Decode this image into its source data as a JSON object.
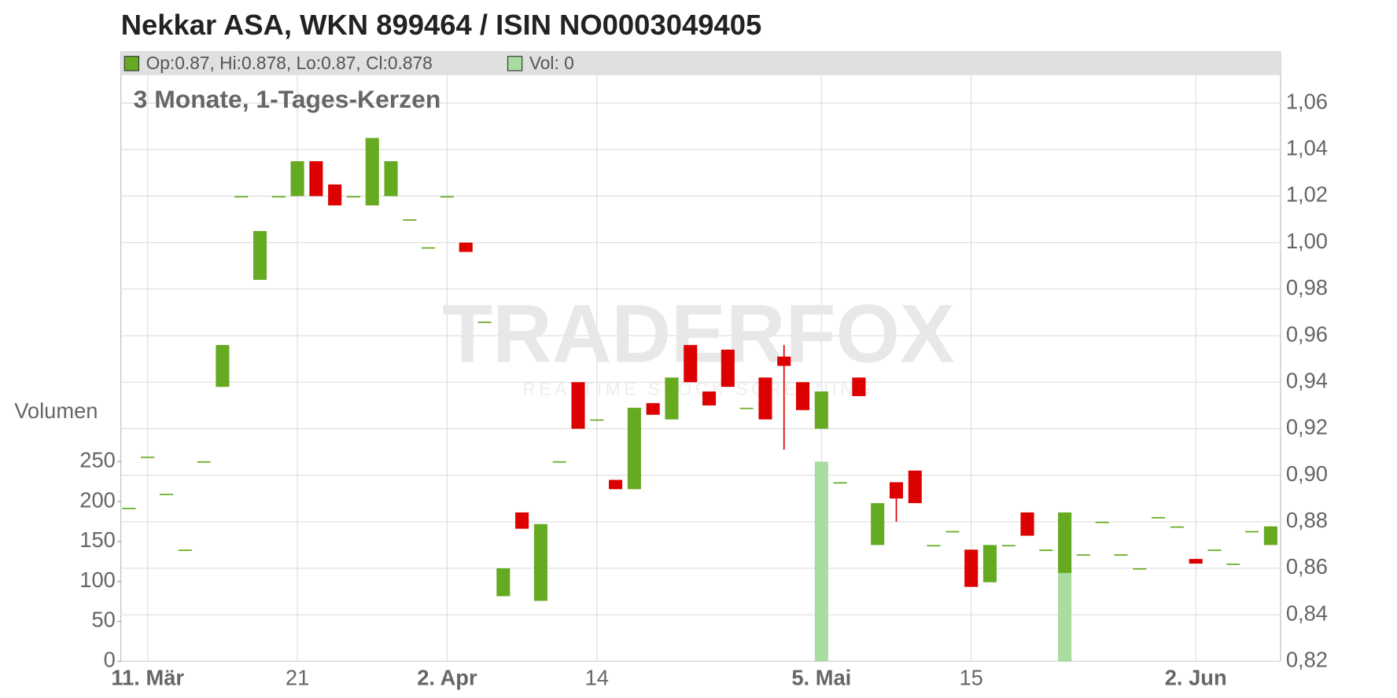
{
  "chart_data": {
    "type": "candlestick",
    "title": "Nekkar ASA, WKN 899464 / ISIN NO0003049405",
    "subtitle": "3 Monate, 1-Tages-Kerzen",
    "legend": {
      "ohlc_text": "Op:0.87, Hi:0.878, Lo:0.87, Cl:0.878",
      "volume_text": "Vol: 0"
    },
    "watermark": "TRADERFOX",
    "watermark_sub": "REALTIME STOCK SCREENING",
    "up_color": "#66aa22",
    "down_color": "#dd0000",
    "categories": [
      null,
      "11. Mär",
      null,
      null,
      null,
      null,
      null,
      null,
      null,
      "21",
      null,
      null,
      null,
      null,
      null,
      null,
      null,
      "2. Apr",
      null,
      null,
      null,
      null,
      null,
      null,
      null,
      "14",
      null,
      null,
      null,
      null,
      null,
      null,
      null,
      null,
      null,
      null,
      null,
      "5. Mai",
      null,
      null,
      null,
      null,
      null,
      null,
      null,
      "15",
      null,
      null,
      null,
      null,
      null,
      null,
      null,
      null,
      null,
      null,
      null,
      "2. Jun",
      null,
      null,
      null,
      null
    ],
    "open": [
      0.886,
      0.908,
      0.892,
      0.868,
      0.906,
      0.938,
      1.02,
      0.984,
      1.02,
      1.02,
      1.035,
      1.025,
      1.02,
      1.016,
      1.02,
      1.01,
      0.998,
      1.02,
      1.0,
      0.966,
      0.848,
      0.884,
      0.846,
      0.906,
      0.94,
      0.924,
      0.898,
      0.894,
      0.931,
      0.924,
      0.956,
      0.936,
      0.954,
      0.929,
      0.942,
      0.951,
      0.94,
      0.92,
      0.897,
      0.942,
      0.87,
      0.897,
      0.902,
      0.87,
      0.876,
      0.868,
      0.854,
      0.87,
      0.884,
      0.868,
      0.858,
      0.866,
      0.88,
      0.866,
      0.86,
      0.882,
      0.878,
      0.864,
      0.868,
      0.862,
      0.876,
      0.87
    ],
    "high": [
      0.886,
      0.908,
      0.892,
      0.868,
      0.906,
      0.956,
      1.02,
      1.005,
      1.02,
      1.035,
      1.035,
      1.025,
      1.02,
      1.045,
      1.035,
      1.01,
      0.998,
      1.02,
      1.0,
      0.966,
      0.86,
      0.884,
      0.879,
      0.906,
      0.94,
      0.924,
      0.898,
      0.929,
      0.931,
      0.942,
      0.956,
      0.936,
      0.954,
      0.929,
      0.942,
      0.956,
      0.94,
      0.936,
      0.897,
      0.942,
      0.888,
      0.897,
      0.902,
      0.87,
      0.876,
      0.868,
      0.87,
      0.87,
      0.884,
      0.868,
      0.884,
      0.866,
      0.88,
      0.866,
      0.86,
      0.882,
      0.878,
      0.864,
      0.868,
      0.862,
      0.876,
      0.878
    ],
    "low": [
      0.886,
      0.908,
      0.892,
      0.868,
      0.906,
      0.938,
      1.02,
      0.984,
      1.02,
      1.02,
      1.02,
      1.016,
      1.02,
      1.016,
      1.02,
      1.01,
      0.998,
      1.02,
      0.996,
      0.966,
      0.848,
      0.877,
      0.846,
      0.906,
      0.92,
      0.924,
      0.894,
      0.894,
      0.926,
      0.924,
      0.94,
      0.93,
      0.938,
      0.929,
      0.924,
      0.911,
      0.928,
      0.92,
      0.897,
      0.934,
      0.87,
      0.88,
      0.888,
      0.87,
      0.876,
      0.852,
      0.854,
      0.87,
      0.874,
      0.868,
      0.858,
      0.866,
      0.88,
      0.866,
      0.86,
      0.882,
      0.878,
      0.862,
      0.868,
      0.862,
      0.876,
      0.87
    ],
    "close": [
      0.886,
      0.908,
      0.892,
      0.868,
      0.906,
      0.956,
      1.02,
      1.005,
      1.02,
      1.035,
      1.02,
      1.016,
      1.02,
      1.045,
      1.035,
      1.01,
      0.998,
      1.02,
      0.996,
      0.966,
      0.86,
      0.877,
      0.879,
      0.906,
      0.92,
      0.924,
      0.894,
      0.929,
      0.926,
      0.942,
      0.94,
      0.93,
      0.938,
      0.929,
      0.924,
      0.947,
      0.928,
      0.936,
      0.897,
      0.934,
      0.888,
      0.89,
      0.888,
      0.87,
      0.876,
      0.852,
      0.87,
      0.87,
      0.874,
      0.868,
      0.884,
      0.866,
      0.88,
      0.866,
      0.86,
      0.882,
      0.878,
      0.862,
      0.868,
      0.862,
      0.876,
      0.878
    ],
    "volume": {
      "axis": "y2",
      "color": "#a8dca0",
      "values": [
        0,
        0,
        0,
        0,
        0,
        0,
        0,
        0,
        0,
        0,
        0,
        0,
        0,
        0,
        0,
        0,
        0,
        0,
        0,
        0,
        0,
        0,
        0,
        0,
        0,
        0,
        0,
        0,
        0,
        0,
        0,
        0,
        0,
        0,
        0,
        0,
        0,
        250,
        0,
        0,
        0,
        0,
        0,
        0,
        0,
        0,
        0,
        0,
        0,
        0,
        112,
        0,
        0,
        0,
        0,
        0,
        0,
        0,
        0,
        0,
        0,
        0
      ]
    },
    "ylim": [
      0.82,
      1.082
    ],
    "yticks": [
      {
        "value": 0.82,
        "label": "0,82"
      },
      {
        "value": 0.84,
        "label": "0,84"
      },
      {
        "value": 0.86,
        "label": "0,86"
      },
      {
        "value": 0.88,
        "label": "0,88"
      },
      {
        "value": 0.9,
        "label": "0,90"
      },
      {
        "value": 0.92,
        "label": "0,92"
      },
      {
        "value": 0.94,
        "label": "0,94"
      },
      {
        "value": 0.96,
        "label": "0,96"
      },
      {
        "value": 0.98,
        "label": "0,98"
      },
      {
        "value": 1.0,
        "label": "1,00"
      },
      {
        "value": 1.02,
        "label": "1,02"
      },
      {
        "value": 1.04,
        "label": "1,04"
      },
      {
        "value": 1.06,
        "label": "1,06"
      }
    ],
    "y2label": "Volumen",
    "y2lim": [
      0,
      763
    ],
    "y2ticks": [
      0,
      50,
      100,
      150,
      200,
      250
    ],
    "grid": true
  }
}
